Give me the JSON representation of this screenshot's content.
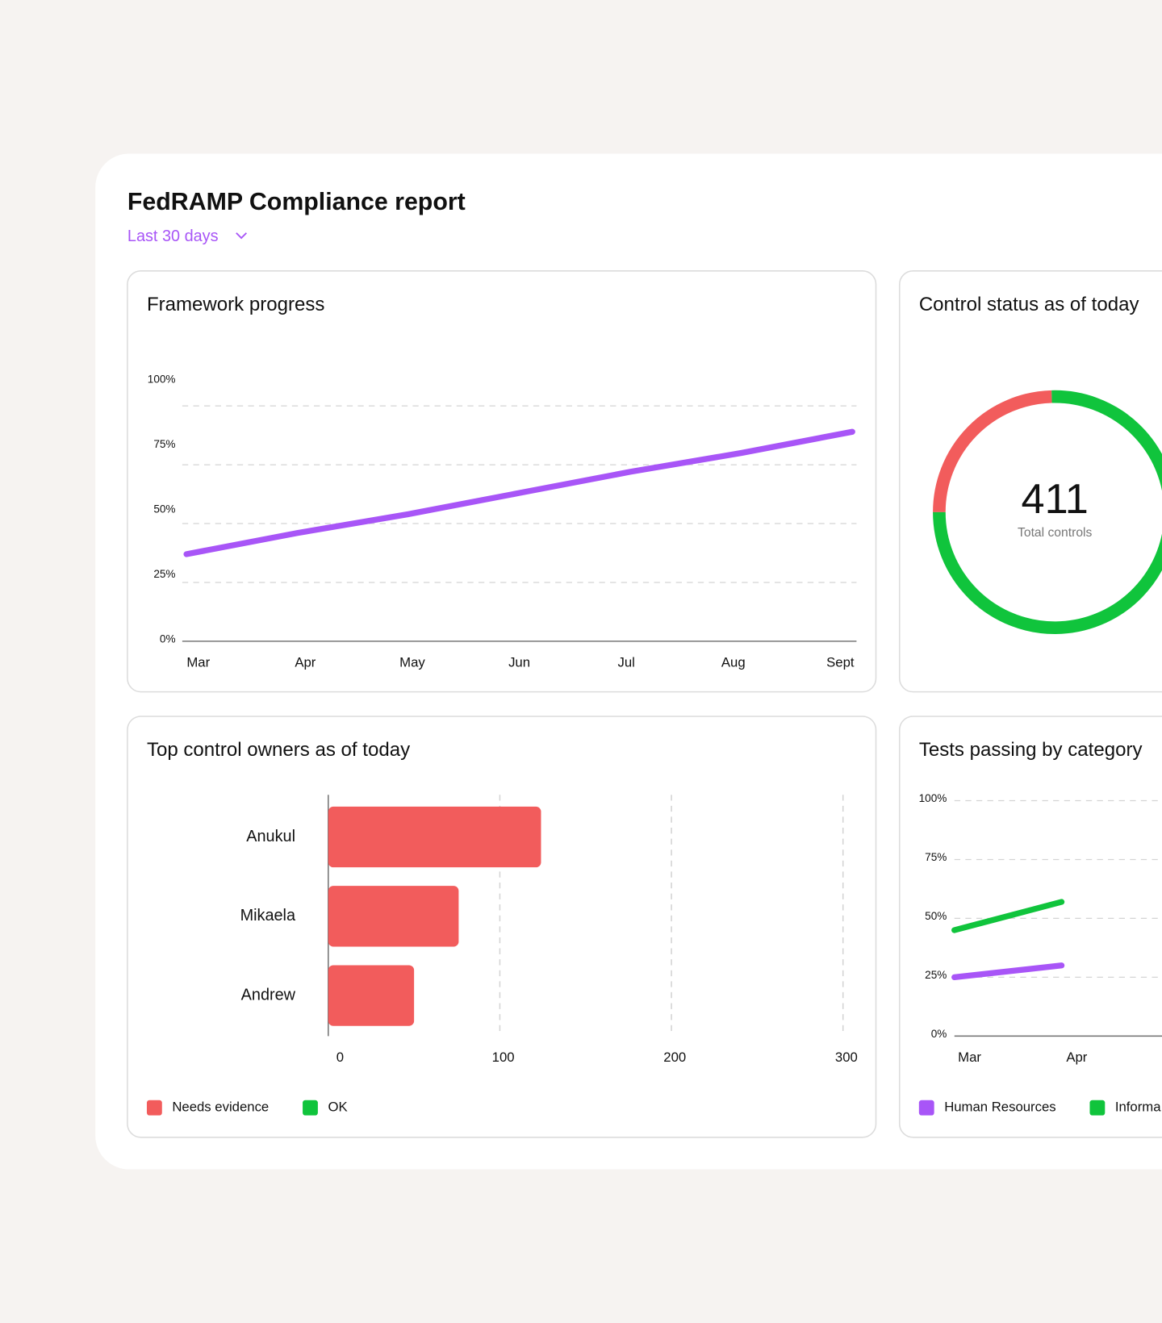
{
  "header": {
    "title": "FedRAMP Compliance report",
    "period": "Last 30 days"
  },
  "chart_data": [
    {
      "type": "line",
      "title": "Framework progress",
      "categories": [
        "Mar",
        "Apr",
        "May",
        "Jun",
        "Jul",
        "Aug",
        "Sept"
      ],
      "values": [
        37,
        46,
        54,
        63,
        72,
        80,
        89
      ],
      "color": "#a855f7",
      "ylim": [
        0,
        100
      ],
      "yticks": [
        {
          "value": 0,
          "label": "0%"
        },
        {
          "value": 25,
          "label": "25%"
        },
        {
          "value": 50,
          "label": "50%"
        },
        {
          "value": 75,
          "label": "75%"
        },
        {
          "value": 100,
          "label": "100%"
        }
      ],
      "grid": true
    },
    {
      "type": "donut",
      "title": "Control status as of today",
      "values": [
        101,
        310
      ],
      "colors": [
        "#f25c5c",
        "#10c43c"
      ],
      "total": 411,
      "total_label": "Total controls"
    },
    {
      "type": "hbar",
      "title": "Top control owners as of today",
      "categories": [
        "Anukul",
        "Mikaela",
        "Andrew"
      ],
      "series": [
        {
          "name": "Needs evidence",
          "color": "#f25c5c",
          "values": [
            124,
            76,
            50
          ]
        },
        {
          "name": "OK",
          "color": "#10c43c",
          "values": [
            null,
            null,
            null
          ]
        }
      ],
      "xlim": [
        0,
        300
      ],
      "xticks": [
        0,
        100,
        200,
        300
      ],
      "grid": true
    },
    {
      "type": "line",
      "title": "Tests passing by category",
      "categories": [
        "Mar",
        "Apr"
      ],
      "series": [
        {
          "name": "Human Resources",
          "color": "#a855f7",
          "values": [
            25,
            30
          ]
        },
        {
          "name": "Informa",
          "color": "#10c43c",
          "values": [
            45,
            57
          ]
        }
      ],
      "ylim": [
        0,
        100
      ],
      "yticks": [
        {
          "value": 0,
          "label": "0%"
        },
        {
          "value": 25,
          "label": "25%"
        },
        {
          "value": 50,
          "label": "50%"
        },
        {
          "value": 75,
          "label": "75%"
        },
        {
          "value": 100,
          "label": "100%"
        }
      ],
      "grid": true
    }
  ]
}
